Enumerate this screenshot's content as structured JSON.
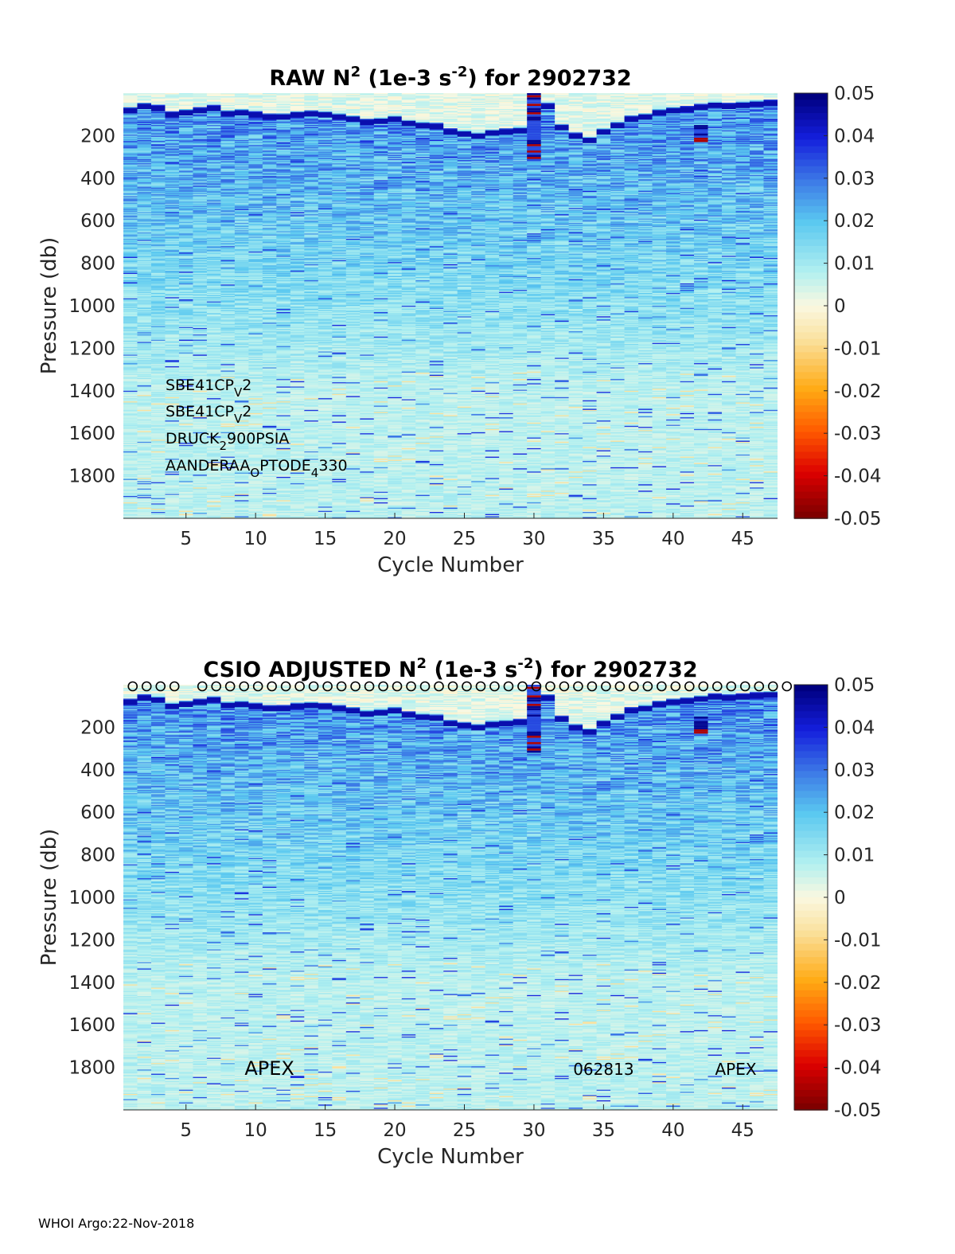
{
  "chart_data": [
    {
      "type": "heatmap",
      "title_parts": [
        "RAW N",
        "2",
        " (1e-3 s",
        "-2",
        ") for 2902732"
      ],
      "xlabel": "Cycle Number",
      "ylabel": "Pressure (db)",
      "xlim": [
        0.5,
        47.5
      ],
      "ylim": [
        0,
        2000
      ],
      "x_ticks": [
        5,
        10,
        15,
        20,
        25,
        30,
        35,
        40,
        45
      ],
      "y_ticks": [
        200,
        400,
        600,
        800,
        1000,
        1200,
        1400,
        1600,
        1800
      ],
      "colorbar": {
        "ticks": [
          "0.05",
          "0.04",
          "0.03",
          "0.02",
          "0.01",
          "0",
          "-0.01",
          "-0.02",
          "-0.03",
          "-0.04",
          "-0.05"
        ],
        "range": [
          -0.05,
          0.05
        ]
      },
      "annotations": [
        {
          "base": "SBE41CP",
          "sub": "V",
          "rest": "2",
          "sub2": "",
          "rest2": ""
        },
        {
          "base": "SBE41CP",
          "sub": "V",
          "rest": "2",
          "sub2": "",
          "rest2": ""
        },
        {
          "base": "DRUCK",
          "sub": "2",
          "rest": "900PSIA",
          "sub2": "",
          "rest2": ""
        },
        {
          "base": "AANDERAA",
          "sub": "O",
          "rest": "PTODE",
          "sub2": "4",
          "rest2": "330"
        }
      ],
      "cycles": 47,
      "thermocline_pressure_db": [
        80,
        60,
        70,
        100,
        90,
        80,
        70,
        95,
        90,
        100,
        110,
        110,
        100,
        95,
        100,
        110,
        120,
        135,
        130,
        120,
        140,
        150,
        155,
        180,
        190,
        200,
        185,
        180,
        175,
        170,
        60,
        160,
        200,
        220,
        180,
        150,
        120,
        110,
        90,
        80,
        75,
        65,
        55,
        60,
        55,
        50,
        45
      ],
      "strong_events": [
        {
          "cycle": 30,
          "from_db": 0,
          "to_db": 320,
          "negative_bands": [
            10,
            50,
            90,
            240,
            270,
            300
          ]
        },
        {
          "cycle": 42,
          "from_db": 150,
          "to_db": 230,
          "negative_bands": [
            210,
            225
          ]
        }
      ],
      "profile_markers": ""
    },
    {
      "type": "heatmap",
      "title_parts": [
        "CSIO  ADJUSTED N",
        "2",
        " (1e-3 s",
        "-2",
        ") for 2902732"
      ],
      "xlabel": "Cycle Number",
      "ylabel": "Pressure (db)",
      "xlim": [
        0.5,
        47.5
      ],
      "ylim": [
        0,
        2000
      ],
      "x_ticks": [
        5,
        10,
        15,
        20,
        25,
        30,
        35,
        40,
        45
      ],
      "y_ticks": [
        200,
        400,
        600,
        800,
        1000,
        1200,
        1400,
        1600,
        1800
      ],
      "colorbar": {
        "ticks": [
          "0.05",
          "0.04",
          "0.03",
          "0.02",
          "0.01",
          "0",
          "-0.01",
          "-0.02",
          "-0.03",
          "-0.04",
          "-0.05"
        ],
        "range": [
          -0.05,
          0.05
        ]
      },
      "annotations": [],
      "bottom_labels": [
        {
          "text": "APEX",
          "cycle": 11,
          "size": "large"
        },
        {
          "text": "062813",
          "cycle": 35,
          "size": "small"
        },
        {
          "text": "APEX",
          "cycle": 44.5,
          "size": "small"
        }
      ],
      "cycles": 47,
      "thermocline_pressure_db": [
        80,
        60,
        70,
        100,
        90,
        80,
        70,
        95,
        90,
        100,
        110,
        110,
        100,
        95,
        100,
        110,
        120,
        135,
        130,
        120,
        140,
        150,
        155,
        180,
        190,
        200,
        185,
        180,
        175,
        170,
        60,
        160,
        200,
        220,
        180,
        150,
        120,
        110,
        90,
        80,
        75,
        65,
        55,
        60,
        55,
        50,
        45
      ],
      "strong_events": [
        {
          "cycle": 30,
          "from_db": 0,
          "to_db": 320,
          "negative_bands": [
            10,
            50,
            90,
            240,
            270,
            300
          ]
        },
        {
          "cycle": 42,
          "from_db": 150,
          "to_db": 230,
          "negative_bands": [
            210,
            225
          ]
        }
      ],
      "profile_markers": "o",
      "profile_marker_cycles": [
        1,
        2,
        3,
        4,
        6,
        7,
        8,
        9,
        10,
        11,
        12,
        13,
        14,
        15,
        16,
        17,
        18,
        19,
        20,
        21,
        22,
        23,
        24,
        25,
        26,
        27,
        28,
        29,
        30,
        31,
        32,
        33,
        34,
        35,
        36,
        37,
        38,
        39,
        40,
        41,
        42,
        43,
        44,
        45,
        46,
        47,
        48
      ]
    }
  ],
  "footer": "WHOI Argo:22-Nov-2018"
}
